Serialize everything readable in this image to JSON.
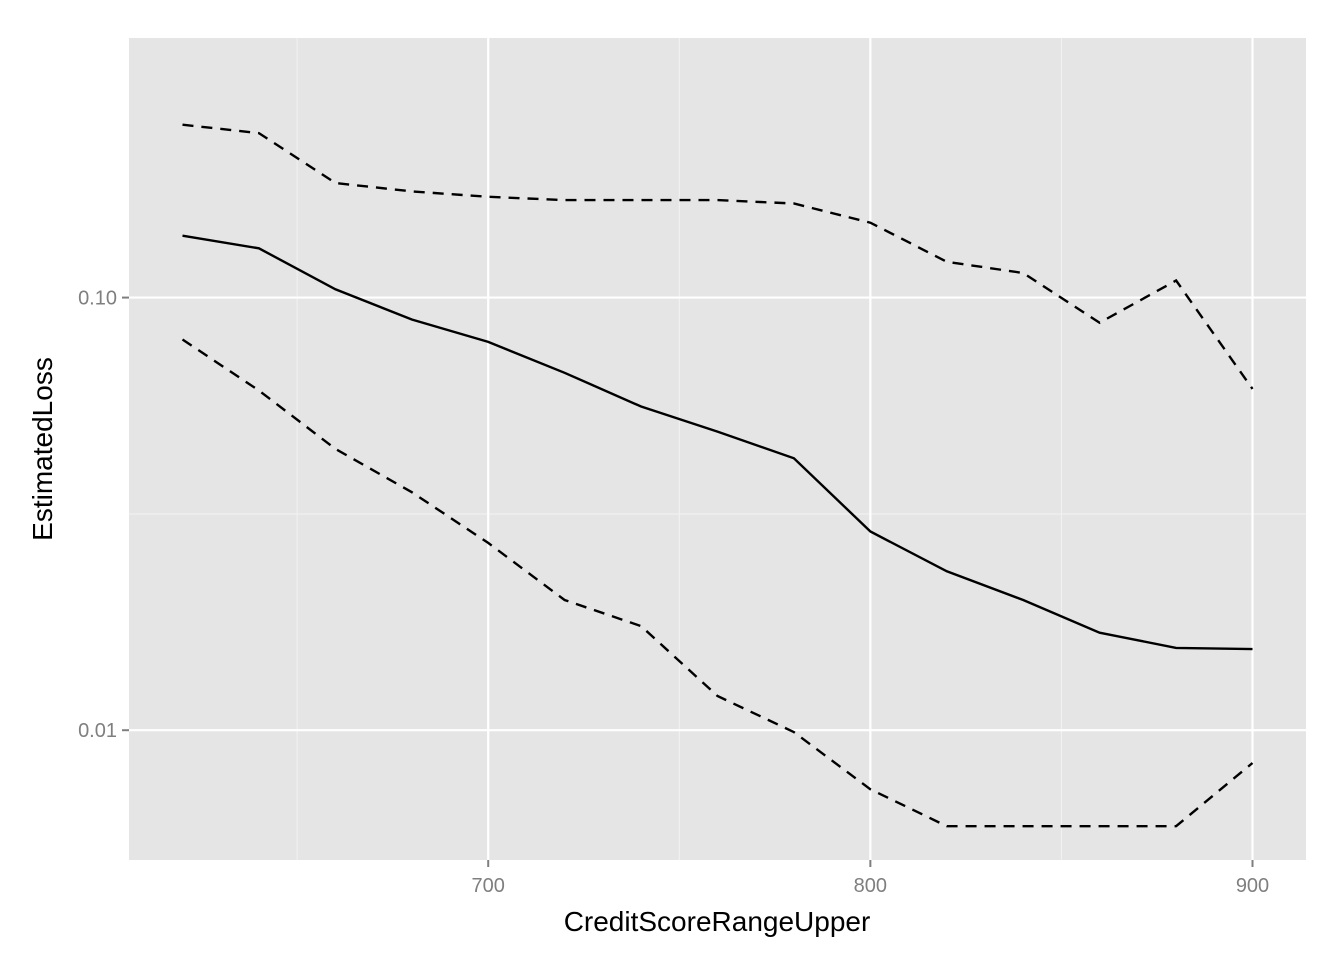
{
  "chart_data": {
    "type": "line",
    "xlabel": "CreditScoreRangeUpper",
    "ylabel": "EstimatedLoss",
    "xlim": [
      606,
      914
    ],
    "ylim_log10": [
      -2.3,
      -0.4
    ],
    "y_scale": "log10",
    "grid": true,
    "x_ticks": [
      700,
      800,
      900
    ],
    "x_tick_labels": [
      "700",
      "800",
      "900"
    ],
    "x_minor_ticks": [
      650,
      750,
      850
    ],
    "y_ticks": [
      0.1,
      0.01
    ],
    "y_tick_labels": [
      "0.10",
      "0.01"
    ],
    "y_minor_ticks": [
      0.0316
    ],
    "x": [
      620,
      640,
      660,
      680,
      700,
      720,
      740,
      760,
      780,
      800,
      820,
      840,
      860,
      880,
      900
    ],
    "series": [
      {
        "style": "solid",
        "color": "#000000",
        "values": [
          0.139,
          0.13,
          0.1045,
          0.089,
          0.079,
          0.067,
          0.056,
          0.049,
          0.0425,
          0.0288,
          0.0233,
          0.02,
          0.0168,
          0.0155,
          0.0154
        ]
      },
      {
        "style": "dashed",
        "color": "#000000",
        "values": [
          0.251,
          0.24,
          0.184,
          0.176,
          0.171,
          0.168,
          0.168,
          0.168,
          0.165,
          0.149,
          0.121,
          0.114,
          0.0875,
          0.1095,
          0.0615
        ]
      },
      {
        "style": "dashed",
        "color": "#000000",
        "values": [
          0.08,
          0.061,
          0.0447,
          0.0355,
          0.0271,
          0.02,
          0.0174,
          0.012,
          0.0099,
          0.0073,
          0.006,
          0.006,
          0.006,
          0.006,
          0.0084
        ]
      }
    ]
  }
}
